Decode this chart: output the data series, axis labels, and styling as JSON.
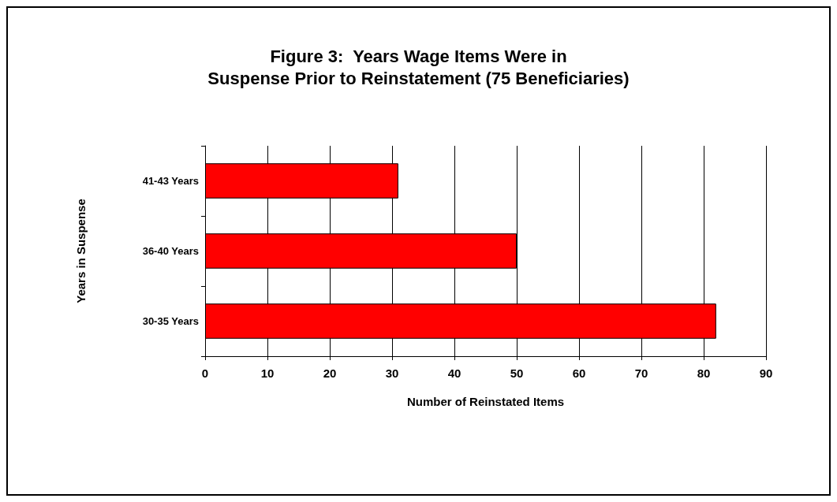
{
  "chart_data": {
    "type": "bar",
    "orientation": "horizontal",
    "title": "Figure 3:  Years Wage Items Were in\nSuspense Prior to Reinstatement (75 Beneficiaries)",
    "xlabel": "Number of Reinstated Items",
    "ylabel": "Years in Suspense",
    "categories": [
      "41-43 Years",
      "36-40 Years",
      "30-35 Years"
    ],
    "values": [
      31,
      50,
      82
    ],
    "color": "#ff0000",
    "xlim": [
      0,
      90
    ],
    "xticks": [
      0,
      10,
      20,
      30,
      40,
      50,
      60,
      70,
      80,
      90
    ],
    "grid": "x"
  }
}
